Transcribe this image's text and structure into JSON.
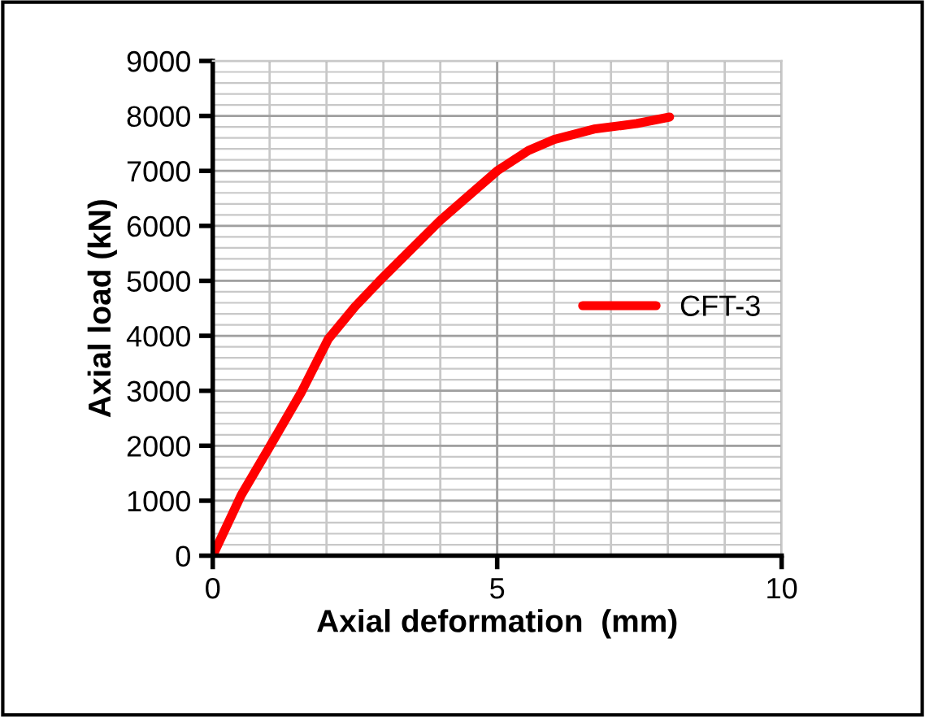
{
  "chart_data": {
    "type": "line",
    "xlabel": "Axial deformation  (mm)",
    "ylabel": "Axial load (kN)",
    "xlim": [
      0,
      10
    ],
    "xticks": [
      0,
      5,
      10
    ],
    "ylim": [
      0,
      9000
    ],
    "yticks": [
      0,
      1000,
      2000,
      3000,
      4000,
      5000,
      6000,
      7000,
      8000,
      9000
    ],
    "grid": true,
    "legend": "right",
    "marker": "none",
    "line_style": "solid",
    "series": [
      {
        "name": "CFT-3",
        "color": "#ff0000",
        "x": [
          0,
          0.5,
          1.0,
          1.55,
          2.03,
          2.5,
          3.0,
          4.0,
          5.0,
          5.55,
          6.0,
          6.7,
          7.45,
          8.03
        ],
        "values": [
          0,
          1100,
          1980,
          2960,
          3940,
          4530,
          5070,
          6100,
          7000,
          7370,
          7570,
          7760,
          7860,
          7980
        ]
      }
    ]
  }
}
